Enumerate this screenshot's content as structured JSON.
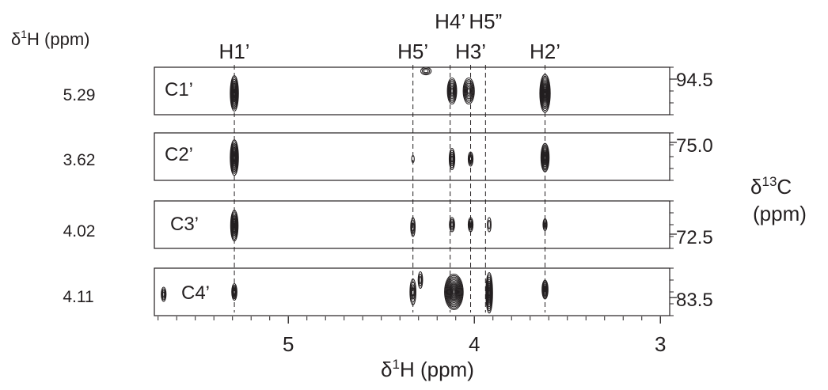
{
  "chart_data": {
    "type": "scatter",
    "description_type": "2D NMR strip plot (13C-1H correlation contours)",
    "left_axis_label_prefix": "δ",
    "left_axis_label_sup": "1",
    "left_axis_label_suffix": "H (ppm)",
    "right_axis_label_prefix": "δ",
    "right_axis_label_sup": "13",
    "right_axis_label_suffix": "C",
    "right_axis_label_units": "(ppm)",
    "xlabel_prefix": "δ",
    "xlabel_sup": "1",
    "xlabel_suffix": "H (ppm)",
    "x_axis": {
      "min": 2.95,
      "max": 5.72,
      "reversed": true,
      "ticks": [
        5,
        4,
        3
      ],
      "tick_labels": [
        "5",
        "4",
        "3"
      ]
    },
    "column_labels": [
      {
        "label": "H1’",
        "x": 5.29,
        "tier": 2
      },
      {
        "label": "H5’",
        "x": 4.33,
        "tier": 2
      },
      {
        "label": "H4’",
        "x": 4.13,
        "tier": 1
      },
      {
        "label": "H3’",
        "x": 4.02,
        "tier": 2
      },
      {
        "label": "H5”",
        "x": 3.94,
        "tier": 1
      },
      {
        "label": "H2’",
        "x": 3.62,
        "tier": 2
      }
    ],
    "strips": [
      {
        "carbon": "C1’",
        "proton_shift": "5.29",
        "carbon_tick": "94.5",
        "peaks": [
          {
            "x": 5.29,
            "pos": 0.55,
            "w": 0.022,
            "h": 0.75,
            "levels": 9
          },
          {
            "x": 4.26,
            "pos": 0.08,
            "w": 0.028,
            "h": 0.16,
            "levels": 3
          },
          {
            "x": 4.12,
            "pos": 0.5,
            "w": 0.025,
            "h": 0.55,
            "levels": 7
          },
          {
            "x": 4.03,
            "pos": 0.5,
            "w": 0.03,
            "h": 0.55,
            "levels": 7
          },
          {
            "x": 3.62,
            "pos": 0.55,
            "w": 0.028,
            "h": 0.8,
            "levels": 10
          }
        ]
      },
      {
        "carbon": "C2’",
        "proton_shift": "3.62",
        "carbon_tick": "75.0",
        "peaks": [
          {
            "x": 5.29,
            "pos": 0.52,
            "w": 0.022,
            "h": 0.75,
            "levels": 9
          },
          {
            "x": 4.33,
            "pos": 0.55,
            "w": 0.007,
            "h": 0.15,
            "levels": 1
          },
          {
            "x": 4.12,
            "pos": 0.55,
            "w": 0.015,
            "h": 0.45,
            "levels": 5
          },
          {
            "x": 4.02,
            "pos": 0.55,
            "w": 0.013,
            "h": 0.3,
            "levels": 4
          },
          {
            "x": 3.62,
            "pos": 0.52,
            "w": 0.022,
            "h": 0.6,
            "levels": 8
          }
        ]
      },
      {
        "carbon": "C3’",
        "proton_shift": "4.02",
        "carbon_tick": "72.5",
        "peaks": [
          {
            "x": 5.29,
            "pos": 0.52,
            "w": 0.02,
            "h": 0.65,
            "levels": 8
          },
          {
            "x": 4.33,
            "pos": 0.55,
            "w": 0.012,
            "h": 0.4,
            "levels": 3
          },
          {
            "x": 4.12,
            "pos": 0.5,
            "w": 0.014,
            "h": 0.3,
            "levels": 4
          },
          {
            "x": 4.02,
            "pos": 0.5,
            "w": 0.013,
            "h": 0.3,
            "levels": 4
          },
          {
            "x": 3.92,
            "pos": 0.5,
            "w": 0.01,
            "h": 0.3,
            "levels": 2
          },
          {
            "x": 3.62,
            "pos": 0.5,
            "w": 0.011,
            "h": 0.25,
            "levels": 3
          }
        ]
      },
      {
        "carbon": "C4’",
        "proton_shift": "4.11",
        "carbon_tick": "83.5",
        "peaks": [
          {
            "x": 5.67,
            "pos": 0.55,
            "w": 0.013,
            "h": 0.3,
            "levels": 4
          },
          {
            "x": 5.29,
            "pos": 0.5,
            "w": 0.014,
            "h": 0.35,
            "levels": 5
          },
          {
            "x": 4.33,
            "pos": 0.5,
            "w": 0.016,
            "h": 0.55,
            "levels": 4
          },
          {
            "x": 4.29,
            "pos": 0.25,
            "w": 0.012,
            "h": 0.35,
            "levels": 3
          },
          {
            "x": 4.11,
            "pos": 0.5,
            "w": 0.05,
            "h": 0.75,
            "levels": 12
          },
          {
            "x": 3.92,
            "pos": 0.52,
            "w": 0.018,
            "h": 0.85,
            "levels": 9
          },
          {
            "x": 3.62,
            "pos": 0.45,
            "w": 0.016,
            "h": 0.4,
            "levels": 6
          }
        ]
      }
    ]
  }
}
